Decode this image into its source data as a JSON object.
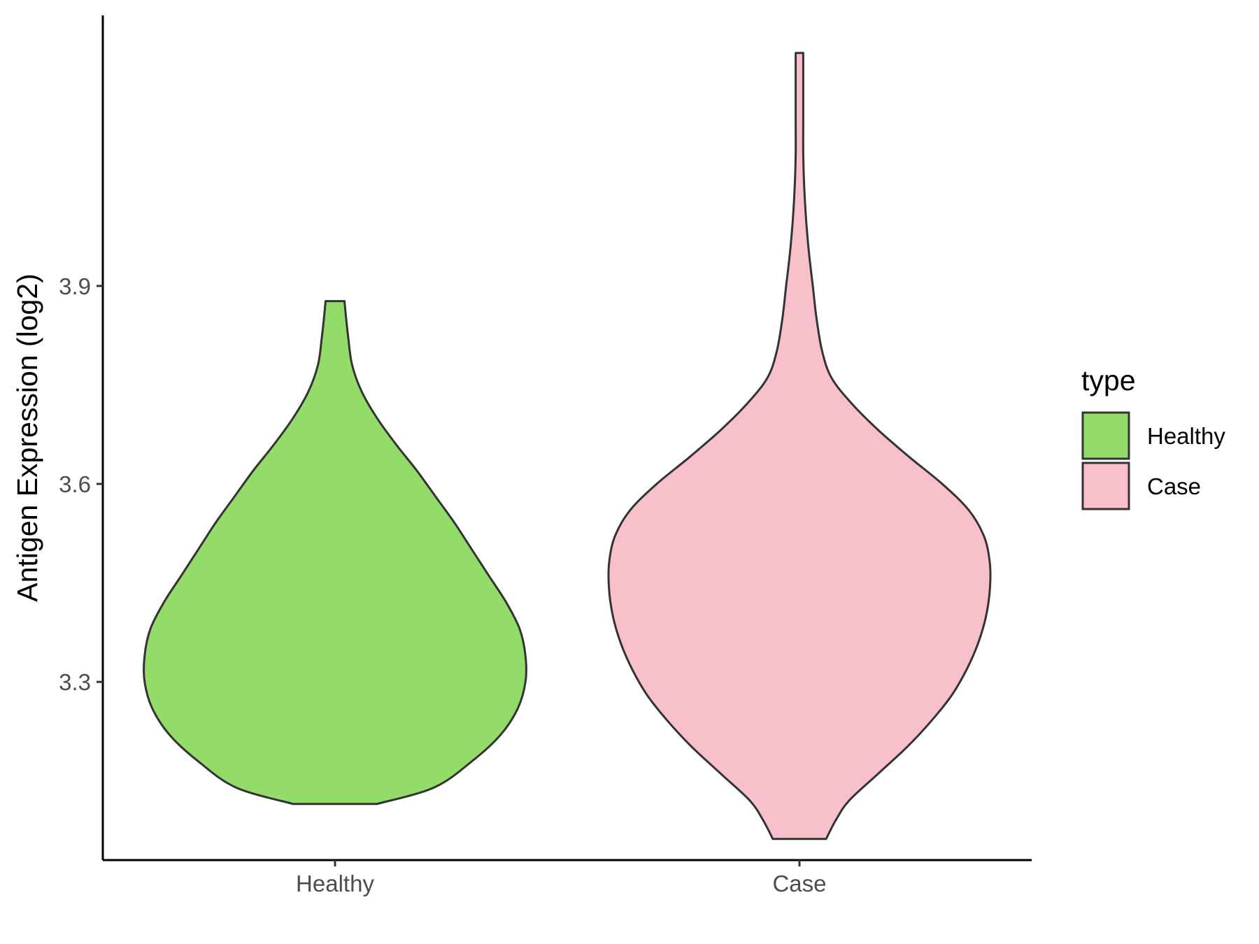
{
  "chart_data": {
    "type": "violin",
    "title": "",
    "xlabel": "",
    "ylabel": "Antigen Expression (log2)",
    "ylim": [
      3.03,
      4.31
    ],
    "yticks": [
      3.3,
      3.6,
      3.9
    ],
    "ytick_labels": [
      "3.3",
      "3.6",
      "3.9"
    ],
    "categories": [
      "Healthy",
      "Case"
    ],
    "legend": {
      "title": "type",
      "position": "right",
      "entries": [
        "Healthy",
        "Case"
      ]
    },
    "grid": false,
    "series": [
      {
        "name": "Healthy",
        "color": "#93DC6A",
        "min": 3.115,
        "max": 3.877,
        "profile": [
          [
            3.115,
            0.22
          ],
          [
            3.14,
            0.52
          ],
          [
            3.18,
            0.72
          ],
          [
            3.22,
            0.87
          ],
          [
            3.26,
            0.96
          ],
          [
            3.3,
            1.0
          ],
          [
            3.34,
            1.0
          ],
          [
            3.38,
            0.97
          ],
          [
            3.42,
            0.9
          ],
          [
            3.46,
            0.81
          ],
          [
            3.5,
            0.72
          ],
          [
            3.54,
            0.63
          ],
          [
            3.58,
            0.53
          ],
          [
            3.62,
            0.43
          ],
          [
            3.66,
            0.32
          ],
          [
            3.7,
            0.22
          ],
          [
            3.74,
            0.14
          ],
          [
            3.78,
            0.09
          ],
          [
            3.82,
            0.07
          ],
          [
            3.86,
            0.055
          ],
          [
            3.877,
            0.05
          ]
        ]
      },
      {
        "name": "Case",
        "color": "#F7C0CB",
        "min": 3.062,
        "max": 4.253,
        "profile": [
          [
            3.062,
            0.14
          ],
          [
            3.09,
            0.19
          ],
          [
            3.12,
            0.26
          ],
          [
            3.16,
            0.41
          ],
          [
            3.2,
            0.56
          ],
          [
            3.24,
            0.69
          ],
          [
            3.28,
            0.8
          ],
          [
            3.32,
            0.88
          ],
          [
            3.36,
            0.94
          ],
          [
            3.4,
            0.98
          ],
          [
            3.44,
            1.0
          ],
          [
            3.48,
            1.0
          ],
          [
            3.52,
            0.97
          ],
          [
            3.56,
            0.89
          ],
          [
            3.6,
            0.75
          ],
          [
            3.64,
            0.58
          ],
          [
            3.68,
            0.42
          ],
          [
            3.72,
            0.28
          ],
          [
            3.76,
            0.17
          ],
          [
            3.8,
            0.12
          ],
          [
            3.85,
            0.09
          ],
          [
            3.9,
            0.07
          ],
          [
            3.95,
            0.05
          ],
          [
            4.0,
            0.035
          ],
          [
            4.05,
            0.025
          ],
          [
            4.1,
            0.02
          ],
          [
            4.15,
            0.02
          ],
          [
            4.2,
            0.02
          ],
          [
            4.253,
            0.02
          ]
        ]
      }
    ]
  }
}
